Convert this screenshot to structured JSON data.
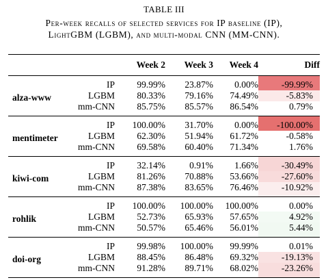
{
  "title": "TABLE III",
  "caption": "Per-week recalls of selected services for IP baseline (IP), LightGBM (LGBM), and multi-modal CNN (MM-CNN).",
  "table": {
    "header": [
      "Week 2",
      "Week 3",
      "Week 4",
      "Diff"
    ],
    "groups": [
      {
        "service": "alza-www",
        "rows": [
          {
            "model": "IP",
            "cells": [
              "99.99%",
              "23.87%",
              "0.00%",
              "-99.99%"
            ],
            "diff_color": "#e8797b"
          },
          {
            "model": "LGBM",
            "cells": [
              "80.33%",
              "79.16%",
              "74.49%",
              "-5.83%"
            ],
            "diff_color": "#fbe9e9"
          },
          {
            "model": "mm-CNN",
            "cells": [
              "85.75%",
              "85.57%",
              "86.54%",
              "0.79%"
            ],
            "diff_color": "#ffffff"
          }
        ]
      },
      {
        "service": "mentimeter",
        "rows": [
          {
            "model": "IP",
            "cells": [
              "100.00%",
              "31.70%",
              "0.00%",
              "-100.00%"
            ],
            "diff_color": "#e5706f"
          },
          {
            "model": "LGBM",
            "cells": [
              "62.30%",
              "51.94%",
              "61.72%",
              "-0.58%"
            ],
            "diff_color": "#ffffff"
          },
          {
            "model": "mm-CNN",
            "cells": [
              "69.58%",
              "60.40%",
              "71.34%",
              "1.76%"
            ],
            "diff_color": "#ffffff"
          }
        ]
      },
      {
        "service": "kiwi-com",
        "rows": [
          {
            "model": "IP",
            "cells": [
              "32.14%",
              "0.91%",
              "1.66%",
              "-30.49%"
            ],
            "diff_color": "#f7d6d6"
          },
          {
            "model": "LGBM",
            "cells": [
              "81.26%",
              "70.88%",
              "53.66%",
              "-27.60%"
            ],
            "diff_color": "#f8dbdb"
          },
          {
            "model": "mm-CNN",
            "cells": [
              "87.38%",
              "83.65%",
              "76.46%",
              "-10.92%"
            ],
            "diff_color": "#fbeeee"
          }
        ]
      },
      {
        "service": "rohlik",
        "rows": [
          {
            "model": "IP",
            "cells": [
              "100.00%",
              "100.00%",
              "100.00%",
              "0.00%"
            ],
            "diff_color": "#ffffff"
          },
          {
            "model": "LGBM",
            "cells": [
              "52.73%",
              "65.93%",
              "57.65%",
              "4.92%"
            ],
            "diff_color": "#f3faf4"
          },
          {
            "model": "mm-CNN",
            "cells": [
              "50.57%",
              "65.46%",
              "56.01%",
              "5.44%"
            ],
            "diff_color": "#f1f9f2"
          }
        ]
      },
      {
        "service": "doi-org",
        "rows": [
          {
            "model": "IP",
            "cells": [
              "99.98%",
              "100.00%",
              "99.99%",
              "0.01%"
            ],
            "diff_color": "#ffffff"
          },
          {
            "model": "LGBM",
            "cells": [
              "88.45%",
              "86.48%",
              "69.32%",
              "-19.13%"
            ],
            "diff_color": "#f9e2e2"
          },
          {
            "model": "mm-CNN",
            "cells": [
              "91.28%",
              "89.71%",
              "68.02%",
              "-23.26%"
            ],
            "diff_color": "#f8dddd"
          }
        ]
      }
    ]
  }
}
